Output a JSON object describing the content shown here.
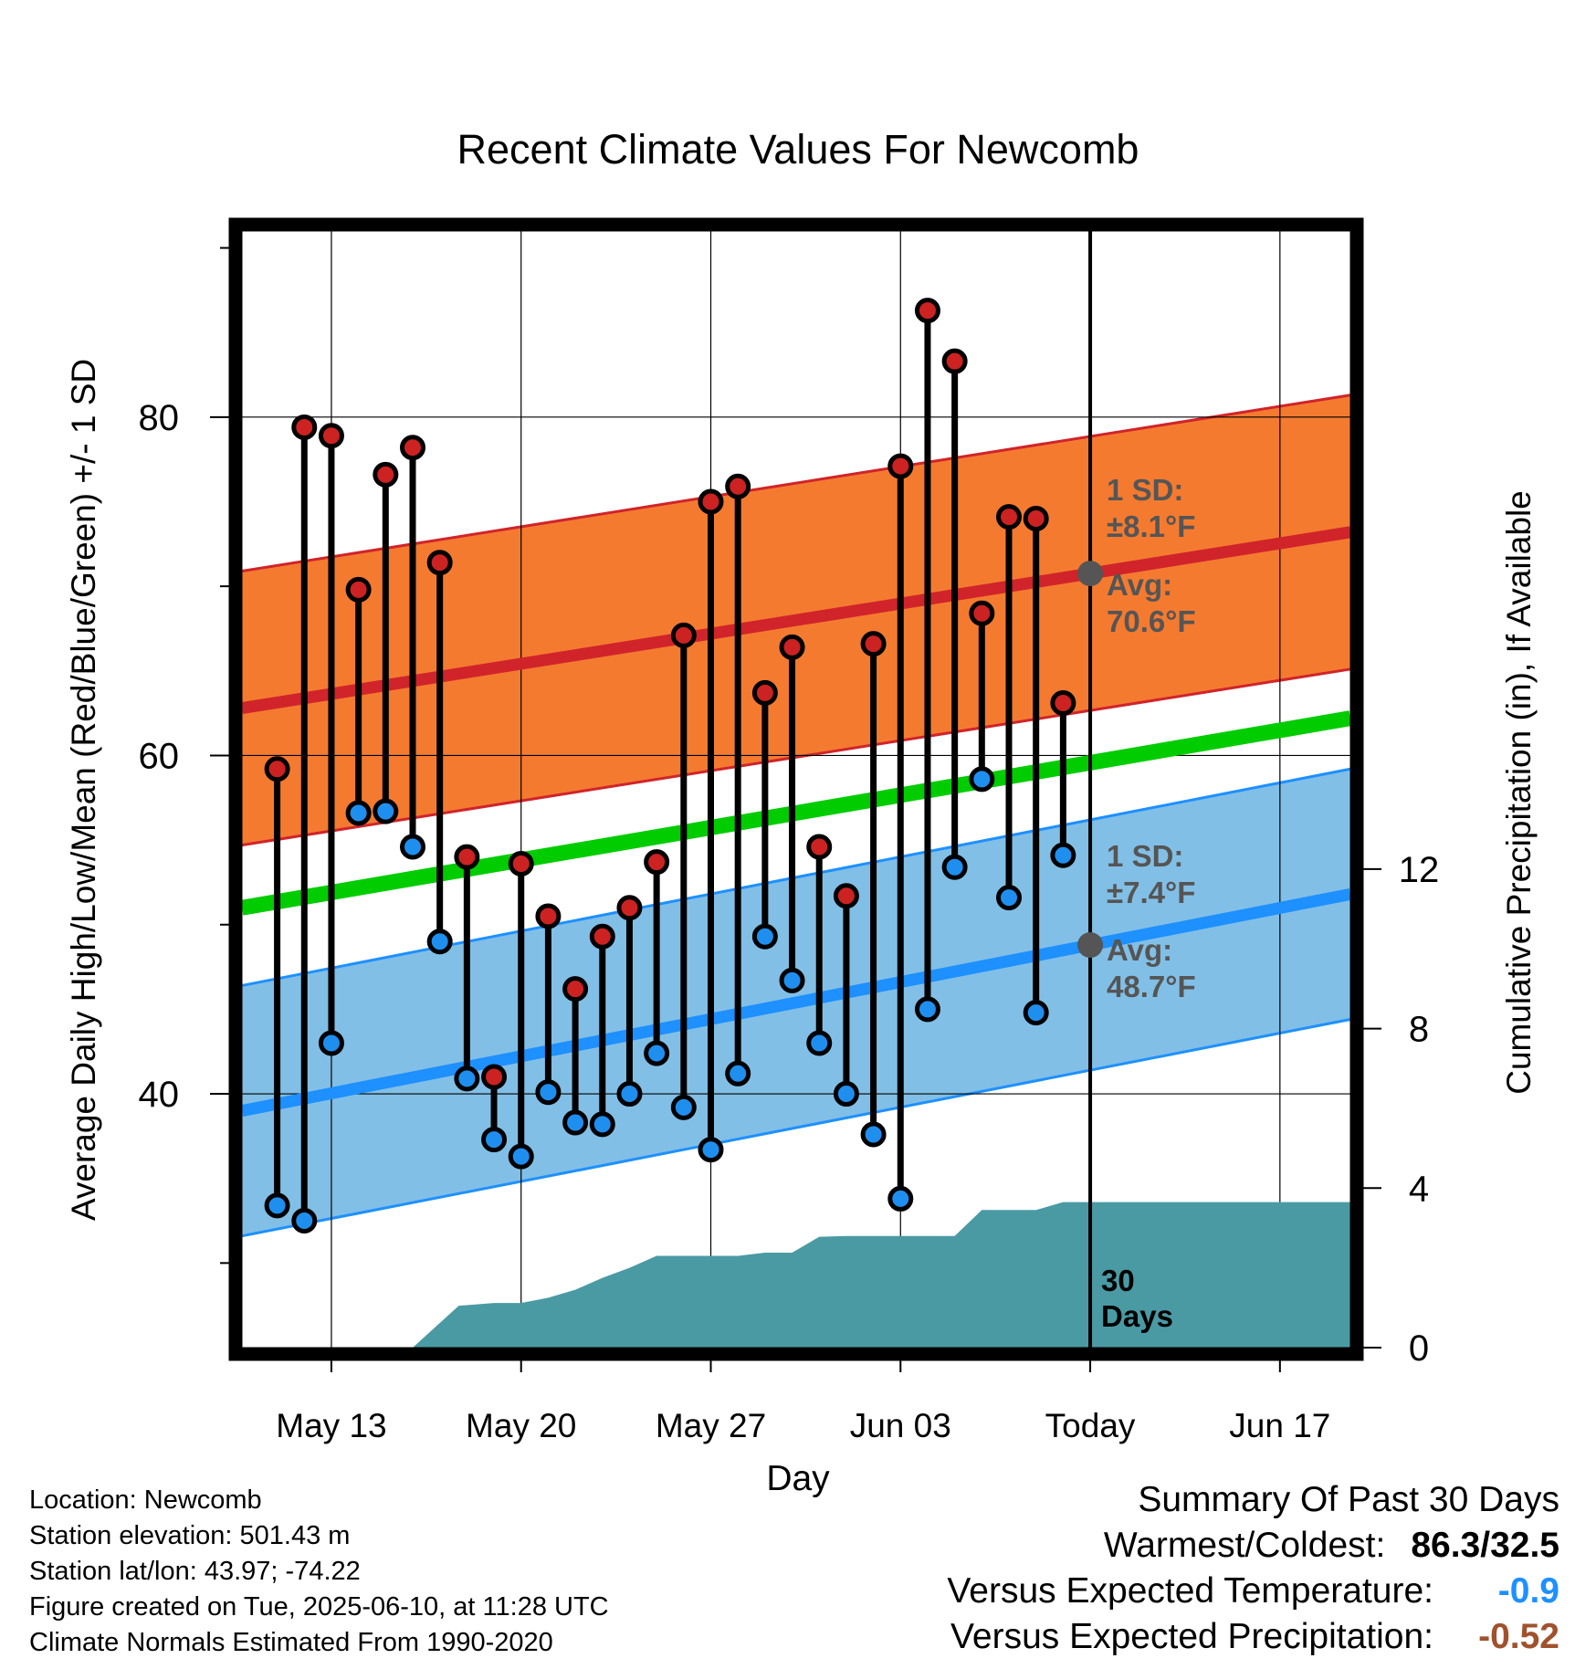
{
  "title": "Recent Climate Values For Newcomb",
  "xlabel": "Day",
  "ylabel_left": "Average Daily High/Low/Mean (Red/Blue/Green) +/- 1 SD",
  "ylabel_right": "Cumulative Precipitation (in), If Available",
  "today_label": "Today",
  "period_label_line1": "30",
  "period_label_line2": "Days",
  "high_sd_label": "1 SD:",
  "high_sd_value": "±8.1°F",
  "high_avg_label": "Avg:",
  "high_avg_value": "70.6°F",
  "low_sd_label": "1 SD:",
  "low_sd_value": "±7.4°F",
  "low_avg_label": "Avg:",
  "low_avg_value": "48.7°F",
  "colors": {
    "high_band": "#f47a30",
    "high_line": "#d0242a",
    "low_band": "#82bfe6",
    "low_line": "#1e90ff",
    "mean_line": "#00cc00",
    "precip": "#4a9aa4",
    "high_dot": "#cc2222",
    "low_dot": "#1f8fef",
    "annot": "#555555"
  },
  "footer_left": {
    "location": "Location: Newcomb",
    "elevation": "Station elevation: 501.43 m",
    "latlon": "Station lat/lon: 43.97; -74.22",
    "created": "Figure created on Tue, 2025-06-10, at 11:28 UTC",
    "normals": "Climate Normals Estimated From 1990-2020"
  },
  "summary": {
    "heading": "Summary Of Past 30 Days",
    "warm_cold_label": "Warmest/Coldest:",
    "warm_cold_value": "86.3/32.5",
    "temp_label": "Versus Expected Temperature:",
    "temp_value": "-0.9",
    "temp_color": "#1e90ff",
    "precip_label": "Versus Expected Precipitation:",
    "precip_value": "-0.52",
    "precip_color": "#a0522d"
  },
  "chart_data": {
    "type": "line",
    "x_tick_labels": [
      "May 13",
      "May 20",
      "May 27",
      "Jun 03",
      "Today",
      "Jun 17"
    ],
    "x_tick_days": [
      13,
      20,
      27,
      34,
      41,
      48
    ],
    "xlim_days": [
      9.7,
      50.6
    ],
    "today_day": 41,
    "ylim_left": [
      25,
      91
    ],
    "y_ticks_left": [
      40,
      60,
      80
    ],
    "ylim_right": [
      0,
      28.0
    ],
    "y_ticks_right": [
      0,
      4,
      8,
      12
    ],
    "grid": true,
    "days": [
      11,
      12,
      13,
      14,
      15,
      16,
      17,
      18,
      19,
      20,
      21,
      22,
      23,
      24,
      25,
      26,
      27,
      28,
      29,
      30,
      31,
      32,
      33,
      34,
      35,
      36,
      37,
      38,
      39,
      40
    ],
    "highs": [
      59.2,
      79.4,
      78.9,
      69.8,
      76.6,
      78.2,
      71.4,
      54.0,
      41.0,
      53.6,
      50.5,
      46.2,
      49.3,
      51.0,
      53.7,
      67.1,
      75.0,
      75.9,
      63.7,
      66.4,
      54.6,
      51.7,
      66.6,
      77.1,
      86.3,
      83.3,
      68.4,
      74.1,
      74.0,
      63.1
    ],
    "lows": [
      33.4,
      32.5,
      43.0,
      56.6,
      56.7,
      54.6,
      49.0,
      40.9,
      37.3,
      36.3,
      40.1,
      38.3,
      38.2,
      40.0,
      42.4,
      39.2,
      36.7,
      41.2,
      49.3,
      46.7,
      43.0,
      40.0,
      37.6,
      33.8,
      45.0,
      53.4,
      58.6,
      51.6,
      44.8,
      54.1
    ],
    "normal_high": {
      "start": 62.8,
      "end": 73.2,
      "sd": 8.1
    },
    "normal_low": {
      "start": 39.0,
      "end": 51.8,
      "sd": 7.4
    },
    "normal_mean": {
      "start": 51.0,
      "end": 62.2
    },
    "precip_cumulative": {
      "days": [
        9.7,
        16.0,
        17.7,
        19.0,
        20.0,
        21.0,
        22.0,
        23.0,
        24.0,
        25.0,
        26.0,
        27.0,
        28.0,
        29.0,
        30.0,
        31.0,
        32.0,
        33.0,
        34.0,
        35.0,
        36.0,
        37.0,
        38.0,
        39.0,
        40.0,
        41.0,
        50.6
      ],
      "values": [
        0,
        0,
        1.05,
        1.12,
        1.12,
        1.25,
        1.45,
        1.75,
        2.0,
        2.3,
        2.3,
        2.3,
        2.3,
        2.38,
        2.38,
        2.78,
        2.8,
        2.8,
        2.8,
        2.8,
        2.8,
        3.45,
        3.45,
        3.45,
        3.65,
        3.65,
        3.65
      ]
    }
  }
}
